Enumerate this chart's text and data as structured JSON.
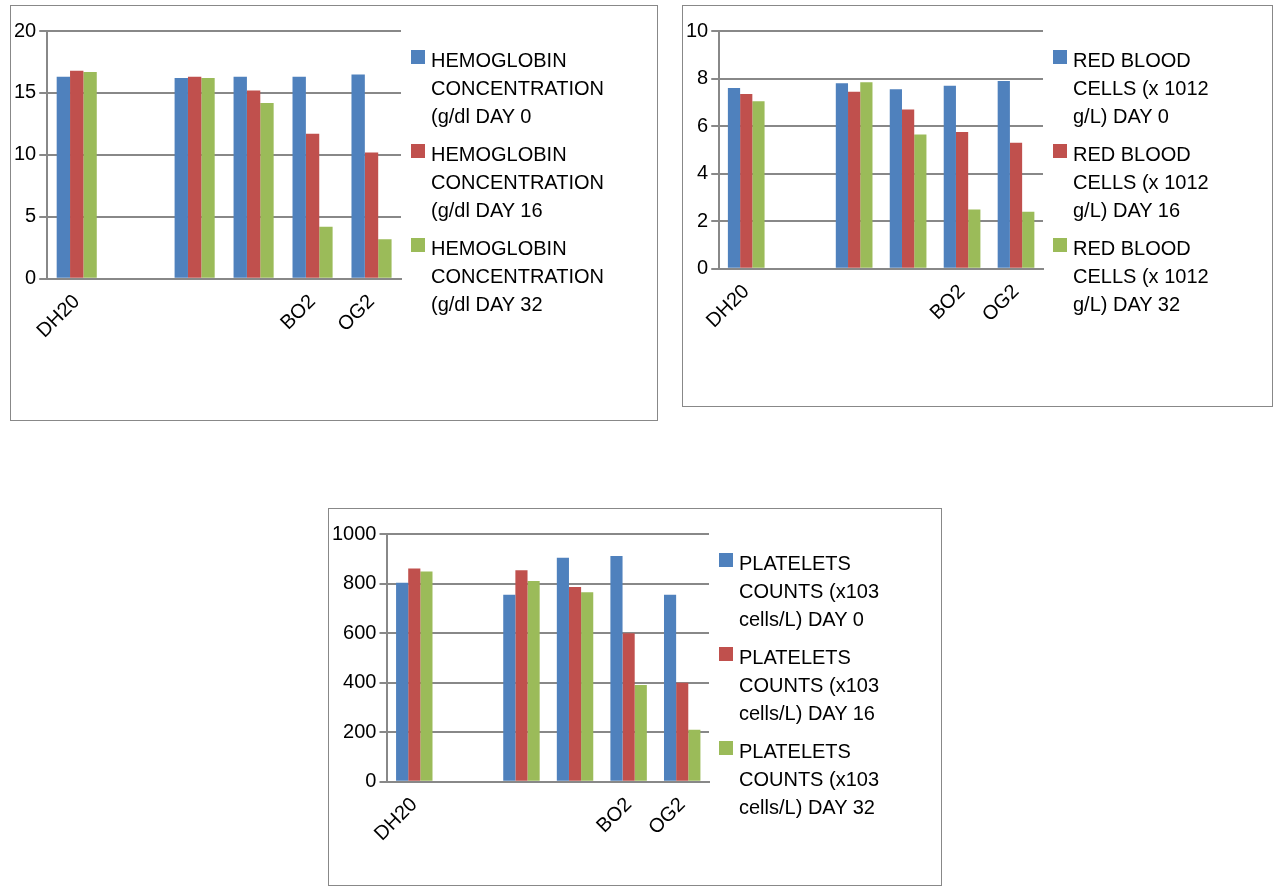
{
  "chart_data": [
    {
      "type": "bar",
      "categories": [
        "DH20",
        null,
        null,
        null,
        "BO2",
        "OG2"
      ],
      "ylim": [
        0,
        20
      ],
      "yticks": [
        0,
        5,
        10,
        15,
        20
      ],
      "grid": "y",
      "legend": "right",
      "series": [
        {
          "name": "HEMOGLOBIN CONCENTRATION (g/dl DAY 0",
          "color": "#4f81bd",
          "values": [
            16.3,
            null,
            16.2,
            16.3,
            16.3,
            16.5
          ]
        },
        {
          "name": "HEMOGLOBIN CONCENTRATION (g/dl DAY 16",
          "color": "#c0504d",
          "values": [
            16.8,
            null,
            16.3,
            15.2,
            11.7,
            10.2
          ]
        },
        {
          "name": "HEMOGLOBIN CONCENTRATION (g/dl DAY 32",
          "color": "#9bbb59",
          "values": [
            16.7,
            null,
            16.2,
            14.2,
            4.2,
            3.2
          ]
        }
      ]
    },
    {
      "type": "bar",
      "categories": [
        "DH20",
        null,
        null,
        null,
        "BO2",
        "OG2"
      ],
      "ylim": [
        0,
        10
      ],
      "yticks": [
        0,
        2,
        4,
        6,
        8,
        10
      ],
      "grid": "y",
      "legend": "right",
      "series": [
        {
          "name": "RED BLOOD CELLS (x 1012 g/L) DAY 0",
          "color": "#4f81bd",
          "values": [
            7.6,
            null,
            7.8,
            7.55,
            7.7,
            7.9
          ]
        },
        {
          "name": "RED BLOOD CELLS (x 1012 g/L) DAY 16",
          "color": "#c0504d",
          "values": [
            7.35,
            null,
            7.45,
            6.7,
            5.75,
            5.3
          ]
        },
        {
          "name": "RED BLOOD CELLS (x 1012 g/L) DAY 32",
          "color": "#9bbb59",
          "values": [
            7.05,
            null,
            7.85,
            5.65,
            2.5,
            2.4
          ]
        }
      ]
    },
    {
      "type": "bar",
      "categories": [
        "DH20",
        null,
        null,
        null,
        "BO2",
        "OG2"
      ],
      "ylim": [
        0,
        1000
      ],
      "yticks": [
        0,
        200,
        400,
        600,
        800,
        1000
      ],
      "grid": "y",
      "legend": "right",
      "series": [
        {
          "name": "PLATELETS COUNTS (x103 cells/L) DAY 0",
          "color": "#4f81bd",
          "values": [
            803,
            null,
            755,
            904,
            911,
            755
          ]
        },
        {
          "name": "PLATELETS COUNTS (x103 cells/L) DAY 16",
          "color": "#c0504d",
          "values": [
            861,
            null,
            854,
            786,
            600,
            400
          ]
        },
        {
          "name": "PLATELETS COUNTS (x103 cells/L) DAY 32",
          "color": "#9bbb59",
          "values": [
            849,
            null,
            810,
            765,
            391,
            210
          ]
        }
      ]
    }
  ]
}
